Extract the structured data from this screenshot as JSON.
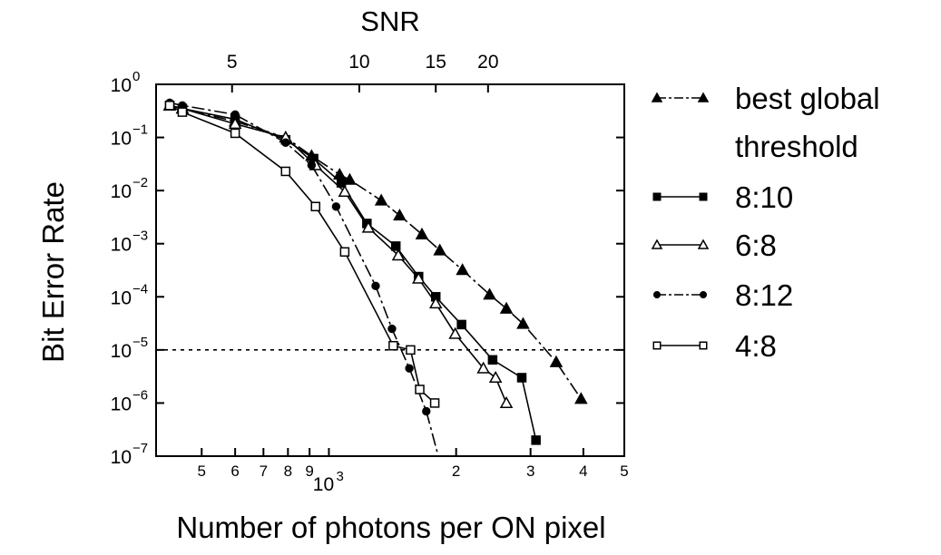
{
  "chart_data": {
    "type": "line",
    "title": "",
    "xlabel": "Number of photons per ON pixel",
    "ylabel": "Bit Error Rate",
    "top_axis_label": "SNR",
    "x_scale": "log",
    "y_scale": "log",
    "xlim": [
      390,
      5000
    ],
    "ylim": [
      1e-07,
      1
    ],
    "x_tick_labels": [
      {
        "value": 500,
        "label": "5"
      },
      {
        "value": 600,
        "label": "6"
      },
      {
        "value": 700,
        "label": "7"
      },
      {
        "value": 800,
        "label": "8"
      },
      {
        "value": 900,
        "label": "9"
      },
      {
        "value": 1000,
        "label": "10",
        "superscript": "3"
      },
      {
        "value": 2000,
        "label": "2"
      },
      {
        "value": 3000,
        "label": "3"
      },
      {
        "value": 4000,
        "label": "4"
      },
      {
        "value": 5000,
        "label": "5"
      }
    ],
    "y_tick_labels": [
      {
        "value": 1,
        "base": "10",
        "exp": "0"
      },
      {
        "value": 0.1,
        "base": "10",
        "exp": "−1"
      },
      {
        "value": 0.01,
        "base": "10",
        "exp": "−2"
      },
      {
        "value": 0.001,
        "base": "10",
        "exp": "−3"
      },
      {
        "value": 0.0001,
        "base": "10",
        "exp": "−4"
      },
      {
        "value": 1e-05,
        "base": "10",
        "exp": "−5"
      },
      {
        "value": 1e-06,
        "base": "10",
        "exp": "−6"
      },
      {
        "value": 1e-07,
        "base": "10",
        "exp": "−7"
      }
    ],
    "top_tick_labels": [
      {
        "x_value": 590,
        "label": "5"
      },
      {
        "x_value": 1180,
        "label": "10"
      },
      {
        "x_value": 1790,
        "label": "15"
      },
      {
        "x_value": 2380,
        "label": "20"
      }
    ],
    "reference_line": {
      "y": 1e-05,
      "style": "dotted"
    },
    "grid": false,
    "legend_position": "right",
    "series": [
      {
        "name": "best global threshold",
        "marker": "triangle-filled",
        "line_style": "dash-dot",
        "x": [
          420,
          450,
          600,
          790,
          910,
          1060,
          1120,
          1330,
          1470,
          1660,
          1830,
          2070,
          2400,
          2630,
          2880,
          3450,
          3950
        ],
        "y": [
          0.4,
          0.35,
          0.2,
          0.1,
          0.045,
          0.02,
          0.016,
          0.0065,
          0.0034,
          0.0015,
          0.00075,
          0.00032,
          0.00011,
          6e-05,
          3.1e-05,
          5.9e-06,
          1.2e-06
        ]
      },
      {
        "name": "8:10",
        "marker": "square-filled",
        "line_style": "solid",
        "x": [
          420,
          450,
          600,
          790,
          920,
          1070,
          1230,
          1440,
          1630,
          1790,
          2060,
          2440,
          2860,
          3090
        ],
        "y": [
          0.4,
          0.35,
          0.22,
          0.09,
          0.04,
          0.014,
          0.0024,
          0.0009,
          0.00024,
          0.0001,
          3e-05,
          6.5e-06,
          3e-06,
          2e-07
        ]
      },
      {
        "name": "6:8",
        "marker": "triangle-open",
        "line_style": "solid",
        "x": [
          420,
          450,
          600,
          790,
          930,
          1090,
          1240,
          1460,
          1630,
          1790,
          1990,
          2320,
          2480,
          2630
        ],
        "y": [
          0.4,
          0.35,
          0.18,
          0.1,
          0.03,
          0.0095,
          0.002,
          0.0006,
          0.00022,
          7.5e-05,
          2e-05,
          4.5e-06,
          3e-06,
          1e-06
        ]
      },
      {
        "name": "8:12",
        "marker": "circle-filled",
        "line_style": "dash-dot",
        "x": [
          420,
          450,
          600,
          790,
          910,
          1040,
          1290,
          1410,
          1550,
          1700,
          1890
        ],
        "y": [
          0.45,
          0.4,
          0.27,
          0.08,
          0.03,
          0.005,
          0.00016,
          2.5e-05,
          4.5e-06,
          7e-07,
          3e-08
        ]
      },
      {
        "name": "4:8",
        "marker": "square-open",
        "line_style": "solid",
        "x": [
          420,
          450,
          600,
          790,
          930,
          1090,
          1420,
          1560,
          1640,
          1780
        ],
        "y": [
          0.4,
          0.3,
          0.12,
          0.023,
          0.005,
          0.0007,
          1.2e-05,
          1e-05,
          1.8e-06,
          1e-06
        ]
      }
    ]
  }
}
